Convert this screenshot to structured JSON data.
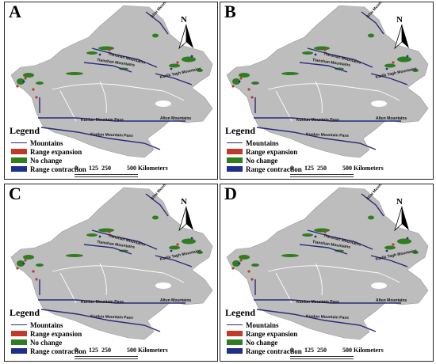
{
  "panels": [
    {
      "letter": "A"
    },
    {
      "letter": "B"
    },
    {
      "letter": "C"
    },
    {
      "letter": "D"
    }
  ],
  "north_label": "N",
  "legend": {
    "title": "Legend",
    "items": [
      {
        "label": "Mountains",
        "color": "#2a2a7a",
        "kind": "line"
      },
      {
        "label": "Range expansion",
        "color": "#c0392b",
        "kind": "box"
      },
      {
        "label": "No change",
        "color": "#2e7d1f",
        "kind": "box"
      },
      {
        "label": "Range contraction",
        "color": "#1f2f8a",
        "kind": "box"
      }
    ]
  },
  "scale": {
    "ticks": [
      "0",
      "125",
      "250",
      "500 Kilometers"
    ]
  },
  "mountain_labels": {
    "altai": "Altai Mountains",
    "tianshan_w": "Tianshan Mountains",
    "tianshan_n": "Tianshan Mountains",
    "karlik": "Karlik Tagh Mountains",
    "altun": "Altun Mountains",
    "kunlun1": "Kunlun Mountain Pass",
    "kunlun2": "Kunlun Mountain Pass"
  },
  "colors": {
    "region": "#bdbdbd",
    "river": "#ffffff",
    "mountain_line": "#2a2a7a",
    "no_change": "#2e7d1f",
    "expansion": "#c0392b",
    "contraction": "#1f2f8a"
  }
}
